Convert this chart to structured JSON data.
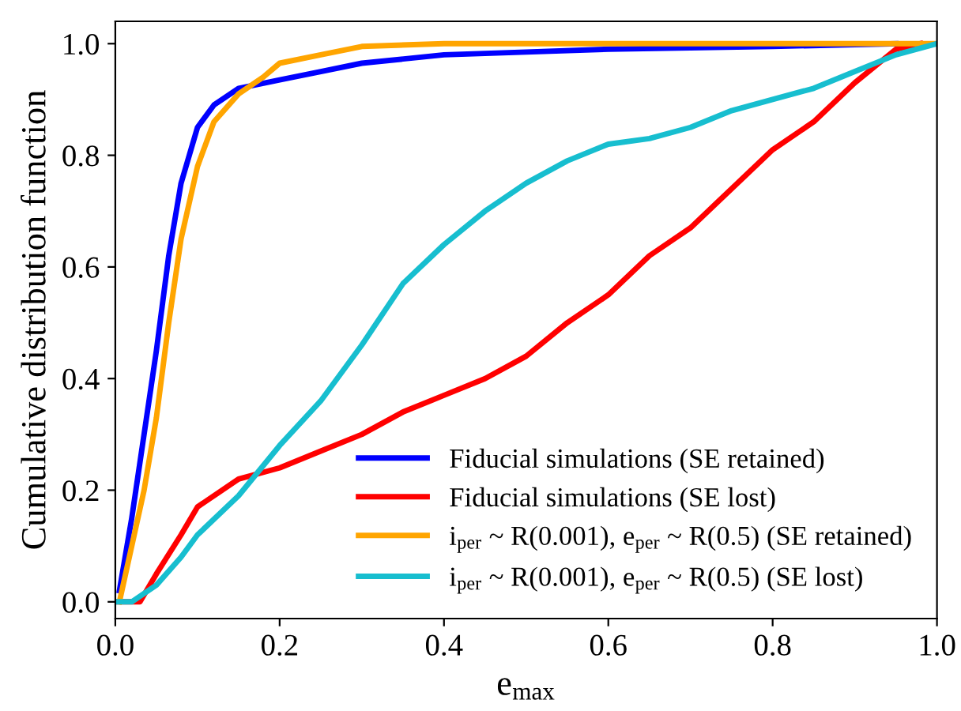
{
  "chart_data": {
    "type": "line",
    "xlabel": "e$_{max}$",
    "ylabel": "Cumulative distribution function",
    "xlim": [
      0,
      1
    ],
    "ylim": [
      -0.03,
      1.04
    ],
    "xticks": [
      {
        "value": 0,
        "label": "0.0"
      },
      0.2,
      0.4,
      0.6,
      0.8,
      {
        "value": 1,
        "label": "1.0"
      }
    ],
    "yticks": [
      {
        "value": 0,
        "label": "0.0"
      },
      0.2,
      0.4,
      0.6,
      0.8,
      {
        "value": 1,
        "label": "1.0"
      }
    ],
    "grid": false,
    "legend": "bottom right",
    "line_style": "solid",
    "marker": "none",
    "series": [
      {
        "name": "Fiducial simulations (SE retained)",
        "color": "#0000ff",
        "x": [
          0.005,
          0.02,
          0.035,
          0.05,
          0.065,
          0.08,
          0.1,
          0.12,
          0.15,
          0.2,
          0.25,
          0.3,
          0.4,
          0.5,
          0.6,
          0.8,
          0.95
        ],
        "values": [
          0.02,
          0.15,
          0.3,
          0.45,
          0.62,
          0.75,
          0.85,
          0.89,
          0.92,
          0.935,
          0.95,
          0.965,
          0.98,
          0.985,
          0.99,
          0.995,
          1.0
        ]
      },
      {
        "name": "Fiducial simulations (SE lost)",
        "color": "#ff0000",
        "x": [
          0.0,
          0.03,
          0.05,
          0.08,
          0.1,
          0.15,
          0.2,
          0.25,
          0.3,
          0.35,
          0.4,
          0.45,
          0.5,
          0.55,
          0.6,
          0.65,
          0.7,
          0.75,
          0.8,
          0.85,
          0.9,
          0.95,
          0.98
        ],
        "values": [
          0.0,
          0.0,
          0.05,
          0.12,
          0.17,
          0.22,
          0.24,
          0.27,
          0.3,
          0.34,
          0.37,
          0.4,
          0.44,
          0.5,
          0.55,
          0.62,
          0.67,
          0.74,
          0.81,
          0.86,
          0.93,
          0.99,
          1.0
        ]
      },
      {
        "name": "i$_{per}$ ~ R(0.001), e$_{per}$ ~ R(0.5) (SE retained)",
        "color": "#ffa500",
        "x": [
          0.005,
          0.02,
          0.035,
          0.05,
          0.065,
          0.08,
          0.1,
          0.12,
          0.15,
          0.18,
          0.2,
          0.25,
          0.3,
          0.4,
          1.0
        ],
        "values": [
          0.0,
          0.1,
          0.2,
          0.33,
          0.5,
          0.65,
          0.78,
          0.86,
          0.91,
          0.94,
          0.965,
          0.98,
          0.995,
          1.0,
          1.0
        ]
      },
      {
        "name": "i$_{per}$ ~ R(0.001), e$_{per}$ ~ R(0.5) (SE lost)",
        "color": "#17becf",
        "x": [
          0.0,
          0.02,
          0.05,
          0.08,
          0.1,
          0.15,
          0.2,
          0.25,
          0.3,
          0.35,
          0.4,
          0.45,
          0.5,
          0.55,
          0.6,
          0.65,
          0.7,
          0.75,
          0.8,
          0.85,
          0.9,
          0.95,
          1.0
        ],
        "values": [
          0.0,
          0.0,
          0.03,
          0.08,
          0.12,
          0.19,
          0.28,
          0.36,
          0.46,
          0.57,
          0.64,
          0.7,
          0.75,
          0.79,
          0.82,
          0.83,
          0.85,
          0.88,
          0.9,
          0.92,
          0.95,
          0.98,
          1.0
        ]
      }
    ]
  }
}
